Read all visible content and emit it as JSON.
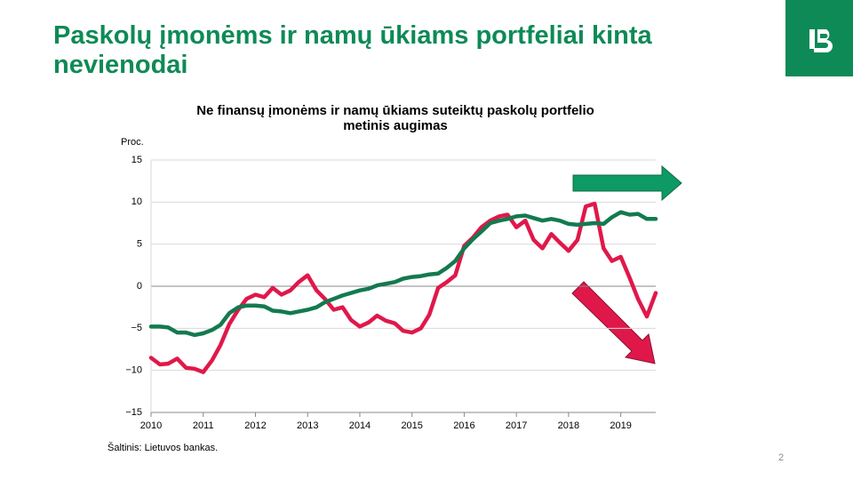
{
  "chart_data": {
    "type": "line",
    "page_title": "Paskolų įmonėms ir namų ūkiams portfeliai kinta nevienodai",
    "title": "Ne finansų įmonėms ir namų ūkiams suteiktų paskolų portfelio metinis augimas",
    "y_label": "Proc.",
    "source": "Šaltinis: Lietuvos bankas.",
    "page_number": "2",
    "x": [
      2010,
      2010.17,
      2010.33,
      2010.5,
      2010.67,
      2010.83,
      2011,
      2011.17,
      2011.33,
      2011.5,
      2011.67,
      2011.83,
      2012,
      2012.17,
      2012.33,
      2012.5,
      2012.67,
      2012.83,
      2013,
      2013.17,
      2013.33,
      2013.5,
      2013.67,
      2013.83,
      2014,
      2014.17,
      2014.33,
      2014.5,
      2014.67,
      2014.83,
      2015,
      2015.17,
      2015.33,
      2015.5,
      2015.67,
      2015.83,
      2016,
      2016.17,
      2016.33,
      2016.5,
      2016.67,
      2016.83,
      2017,
      2017.17,
      2017.33,
      2017.5,
      2017.67,
      2017.83,
      2018,
      2018.17,
      2018.33,
      2018.5,
      2018.67,
      2018.83,
      2019,
      2019.17,
      2019.33,
      2019.5,
      2019.67
    ],
    "series": [
      {
        "color": "#e0184a",
        "values": [
          -8.5,
          -9.3,
          -9.2,
          -8.6,
          -9.7,
          -9.8,
          -10.2,
          -8.8,
          -7,
          -4.5,
          -2.8,
          -1.5,
          -1,
          -1.3,
          -0.2,
          -1,
          -0.5,
          0.5,
          1.3,
          -0.5,
          -1.5,
          -2.8,
          -2.5,
          -4,
          -4.8,
          -4.3,
          -3.5,
          -4.1,
          -4.4,
          -5.3,
          -5.5,
          -5,
          -3.4,
          -0.2,
          0.5,
          1.3,
          4.8,
          5.8,
          7,
          7.8,
          8.3,
          8.5,
          7,
          7.8,
          5.5,
          4.5,
          6.2,
          5.2,
          4.2,
          5.5,
          9.5,
          9.8,
          4.5,
          3,
          3.5,
          1,
          -1.5,
          -3.6,
          -0.8
        ]
      },
      {
        "color": "#137a4f",
        "values": [
          -4.8,
          -4.8,
          -4.9,
          -5.5,
          -5.5,
          -5.8,
          -5.6,
          -5.2,
          -4.6,
          -3.2,
          -2.5,
          -2.3,
          -2.3,
          -2.4,
          -2.9,
          -3,
          -3.2,
          -3,
          -2.8,
          -2.5,
          -1.9,
          -1.5,
          -1.1,
          -0.8,
          -0.5,
          -0.3,
          0.1,
          0.3,
          0.5,
          0.9,
          1.1,
          1.2,
          1.4,
          1.5,
          2.2,
          3,
          4.5,
          5.6,
          6.5,
          7.5,
          7.8,
          8,
          8.3,
          8.4,
          8.1,
          7.8,
          8,
          7.8,
          7.4,
          7.3,
          7.4,
          7.5,
          7.4,
          8.2,
          8.8,
          8.5,
          8.6,
          8,
          8
        ]
      }
    ],
    "xlim": [
      2010,
      2019.67
    ],
    "xticks": [
      2010,
      2011,
      2012,
      2013,
      2014,
      2015,
      2016,
      2017,
      2018,
      2019
    ],
    "ylim": [
      -15,
      15
    ],
    "yticks": [
      {
        "value": -15,
        "label": "−15"
      },
      {
        "value": -10,
        "label": "−10"
      },
      {
        "value": -5,
        "label": "−5"
      },
      0,
      5,
      10,
      15
    ],
    "grid": true
  }
}
